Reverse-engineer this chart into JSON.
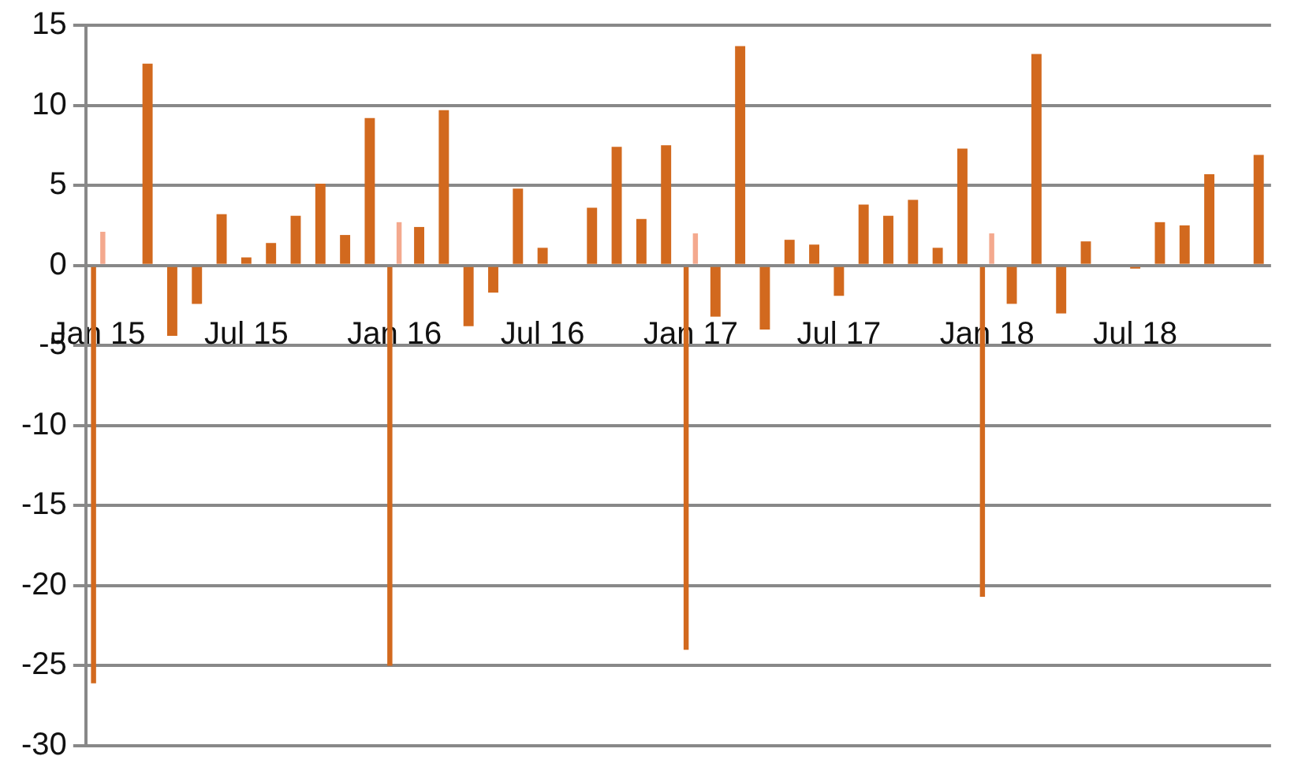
{
  "chart_data": {
    "type": "bar",
    "categories": [
      "Jan 15",
      null,
      null,
      null,
      null,
      null,
      "Jul 15",
      null,
      null,
      null,
      null,
      null,
      "Jan 16",
      null,
      null,
      null,
      null,
      null,
      "Jul 16",
      null,
      null,
      null,
      null,
      null,
      "Jan 17",
      null,
      null,
      null,
      null,
      null,
      "Jul 17",
      null,
      null,
      null,
      null,
      null,
      "Jan 18",
      null,
      null,
      null,
      null,
      null,
      "Jul 18",
      null,
      null,
      null,
      null,
      null
    ],
    "series": [
      {
        "color": "#d2691e",
        "values": [
          -26.1,
          0.1,
          12.6,
          -4.4,
          -2.4,
          3.2,
          0.5,
          1.4,
          3.1,
          5.1,
          1.9,
          9.2,
          -25.0,
          2.4,
          9.7,
          -3.8,
          -1.7,
          4.8,
          1.1,
          0.1,
          3.6,
          7.4,
          2.9,
          7.5,
          -24.0,
          -3.2,
          13.7,
          -4.0,
          1.6,
          1.3,
          -1.9,
          3.8,
          3.1,
          4.1,
          1.1,
          7.3,
          -20.7,
          -2.4,
          13.2,
          -3.0,
          1.5,
          0.0,
          -0.2,
          2.7,
          2.5,
          5.7,
          0.0,
          6.9
        ]
      },
      {
        "color": "#f4a98e",
        "values": [
          2.1,
          null,
          null,
          null,
          null,
          null,
          null,
          null,
          null,
          null,
          null,
          null,
          2.7,
          null,
          null,
          null,
          null,
          null,
          null,
          null,
          null,
          null,
          null,
          null,
          2.0,
          null,
          null,
          null,
          null,
          null,
          null,
          null,
          null,
          null,
          null,
          null,
          2.0,
          null,
          null,
          null,
          null,
          null,
          null,
          null,
          null,
          null,
          null,
          null
        ]
      }
    ],
    "ylim": [
      -30,
      15
    ],
    "yticks": [
      -30,
      -25,
      -20,
      -15,
      -10,
      -5,
      0,
      5,
      10,
      15
    ],
    "grid": "y"
  }
}
